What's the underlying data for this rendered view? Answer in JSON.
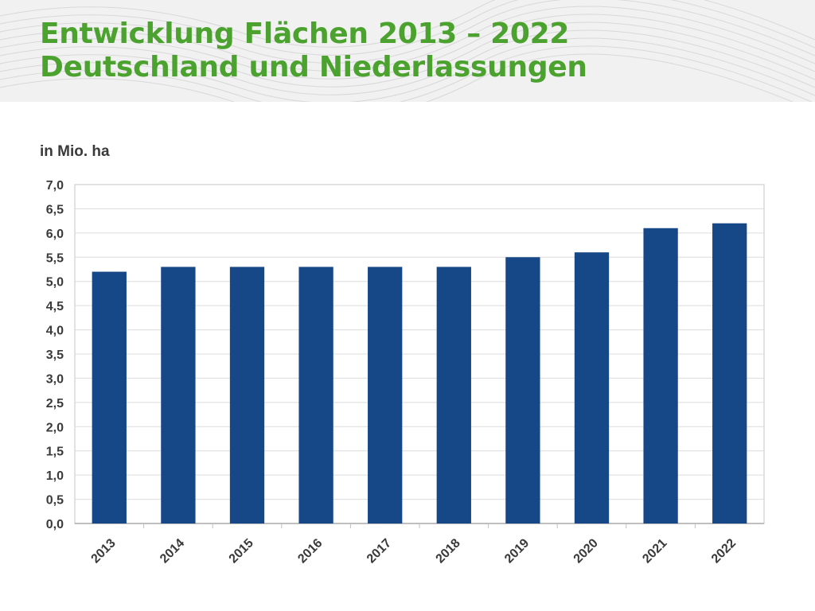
{
  "header": {
    "title_line1": "Entwicklung Flächen 2013 – 2022",
    "title_line2": "Deutschland und Niederlassungen"
  },
  "colors": {
    "title": "#4ca22f",
    "bar": "#164787",
    "grid": "#dcdcdc",
    "header_bg": "#f1f1f1"
  },
  "chart_data": {
    "type": "bar",
    "title": "",
    "ylabel": "in Mio. ha",
    "xlabel": "",
    "categories": [
      "2013",
      "2014",
      "2015",
      "2016",
      "2017",
      "2018",
      "2019",
      "2020",
      "2021",
      "2022"
    ],
    "values": [
      5.2,
      5.3,
      5.3,
      5.3,
      5.3,
      5.3,
      5.5,
      5.6,
      6.1,
      6.2
    ],
    "ylim": [
      0,
      7
    ],
    "yticks": [
      "0,0",
      "0,5",
      "1,0",
      "1,5",
      "2,0",
      "2,5",
      "3,0",
      "3,5",
      "4,0",
      "4,5",
      "5,0",
      "5,5",
      "6,0",
      "6,5",
      "7,0"
    ],
    "grid": true,
    "legend": "none"
  }
}
